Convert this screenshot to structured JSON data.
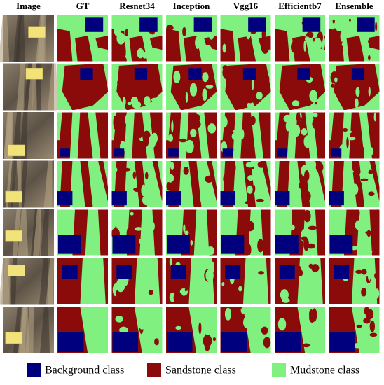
{
  "header": {
    "columns": [
      "Image",
      "GT",
      "Resnet34",
      "Inception",
      "Vgg16",
      "Efficientb7",
      "Ensemble"
    ]
  },
  "legend": {
    "items": [
      "Background class",
      "Sandstone class",
      "Mudstone class"
    ]
  }
}
